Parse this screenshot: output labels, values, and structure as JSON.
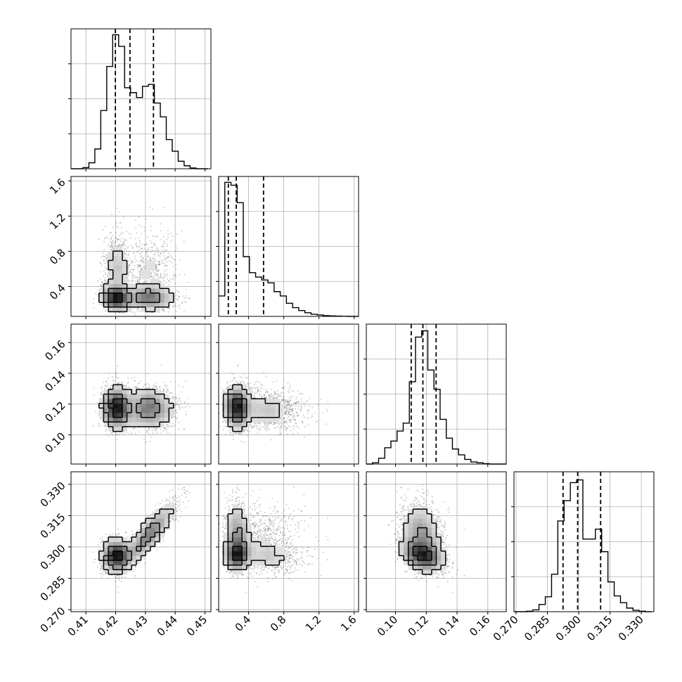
{
  "chart_data": {
    "type": "corner",
    "grid": true,
    "panel_fill": "#ffffff",
    "colors": {
      "line": "#000000",
      "grid": "#b0b0b0",
      "points": "#555555",
      "density": "#888888"
    },
    "parameters": [
      {
        "range": [
          0.405,
          0.452
        ],
        "ticks": [
          0.41,
          0.42,
          0.43,
          0.44,
          0.45
        ],
        "tick_labels": [
          "0.41",
          "0.42",
          "0.43",
          "0.44",
          "0.45"
        ],
        "quantiles": [
          0.4199,
          0.4248,
          0.4327
        ],
        "hist": {
          "edges": [
            0.405,
            0.407,
            0.409,
            0.411,
            0.413,
            0.415,
            0.417,
            0.419,
            0.421,
            0.423,
            0.425,
            0.427,
            0.429,
            0.431,
            0.433,
            0.435,
            0.437,
            0.439,
            0.441,
            0.443,
            0.445,
            0.447,
            0.449,
            0.451
          ],
          "counts": [
            0,
            0,
            0.3,
            1.6,
            5.3,
            15.6,
            27.4,
            35.9,
            32.8,
            21.7,
            20.4,
            19.1,
            22.1,
            22.6,
            17.6,
            13.9,
            7.8,
            4.7,
            2.0,
            0.8,
            0.2,
            0,
            0
          ],
          "ymax": 37.5
        },
        "modes": [
          {
            "mu": 0.4203,
            "sd": 0.0024,
            "w": 0.5
          },
          {
            "mu": 0.4315,
            "sd": 0.0042,
            "w": 0.5
          }
        ]
      },
      {
        "range": [
          0.06,
          1.65
        ],
        "ticks": [
          0.4,
          0.8,
          1.2,
          1.6
        ],
        "tick_labels": [
          "0.4",
          "0.8",
          "1.2",
          "1.6"
        ],
        "quantiles": [
          0.17,
          0.26,
          0.57
        ],
        "hist": {
          "edges": [
            0.06,
            0.13,
            0.2,
            0.27,
            0.34,
            0.41,
            0.48,
            0.55,
            0.62,
            0.69,
            0.76,
            0.83,
            0.9,
            0.97,
            1.04,
            1.11,
            1.18,
            1.25,
            1.32,
            1.39,
            1.46,
            1.53,
            1.6,
            1.65
          ],
          "counts": [
            1.4,
            9.2,
            9.0,
            7.8,
            4.1,
            3.0,
            2.7,
            2.5,
            2.3,
            1.7,
            1.4,
            0.9,
            0.6,
            0.4,
            0.25,
            0.15,
            0.1,
            0.05,
            0.03,
            0.02,
            0.01,
            0,
            0
          ],
          "ymax": 9.6
        },
        "modes": [
          {
            "mu": 0.2,
            "sd": 0.06,
            "w": 0.55
          },
          {
            "mu": 0.45,
            "sd": 0.25,
            "w": 0.45
          }
        ]
      },
      {
        "range": [
          0.081,
          0.172
        ],
        "ticks": [
          0.1,
          0.12,
          0.14,
          0.16
        ],
        "tick_labels": [
          "0.10",
          "0.12",
          "0.14",
          "0.16"
        ],
        "quantiles": [
          0.1102,
          0.1178,
          0.1264
        ],
        "hist": {
          "edges": [
            0.081,
            0.085,
            0.089,
            0.093,
            0.097,
            0.101,
            0.105,
            0.109,
            0.113,
            0.117,
            0.121,
            0.125,
            0.129,
            0.133,
            0.137,
            0.141,
            0.145,
            0.149,
            0.153,
            0.157,
            0.161,
            0.165,
            0.169,
            0.172
          ],
          "counts": [
            0,
            0.3,
            1.4,
            3.9,
            5.5,
            7.9,
            9.8,
            19.7,
            30.4,
            31.9,
            22.5,
            17.9,
            10.7,
            6.2,
            3.6,
            2.2,
            1.1,
            0.5,
            0.3,
            0.1,
            0,
            0,
            0
          ],
          "ymax": 33.5
        },
        "modes": [
          {
            "mu": 0.1175,
            "sd": 0.0075,
            "w": 1.0
          }
        ]
      },
      {
        "range": [
          0.269,
          0.336
        ],
        "ticks": [
          0.27,
          0.285,
          0.3,
          0.315,
          0.33
        ],
        "tick_labels": [
          "0.270",
          "0.285",
          "0.300",
          "0.315",
          "0.330"
        ],
        "quantiles": [
          0.2925,
          0.2995,
          0.3105
        ],
        "hist": {
          "edges": [
            0.269,
            0.272,
            0.275,
            0.278,
            0.281,
            0.284,
            0.287,
            0.29,
            0.293,
            0.296,
            0.299,
            0.302,
            0.305,
            0.308,
            0.311,
            0.314,
            0.317,
            0.32,
            0.323,
            0.326,
            0.329,
            0.332,
            0.335
          ],
          "counts": [
            0,
            0,
            0.1,
            0.4,
            1.6,
            3.3,
            8.3,
            20.1,
            24.6,
            28.6,
            29.2,
            16.1,
            16.1,
            18.3,
            13.3,
            6.6,
            3.5,
            2.0,
            0.8,
            0.3,
            0.1,
            0
          ],
          "ymax": 31.0
        },
        "modes": [
          {
            "mu": 0.296,
            "sd": 0.0045,
            "w": 0.58
          },
          {
            "mu": 0.3095,
            "sd": 0.006,
            "w": 0.42
          }
        ]
      }
    ]
  }
}
